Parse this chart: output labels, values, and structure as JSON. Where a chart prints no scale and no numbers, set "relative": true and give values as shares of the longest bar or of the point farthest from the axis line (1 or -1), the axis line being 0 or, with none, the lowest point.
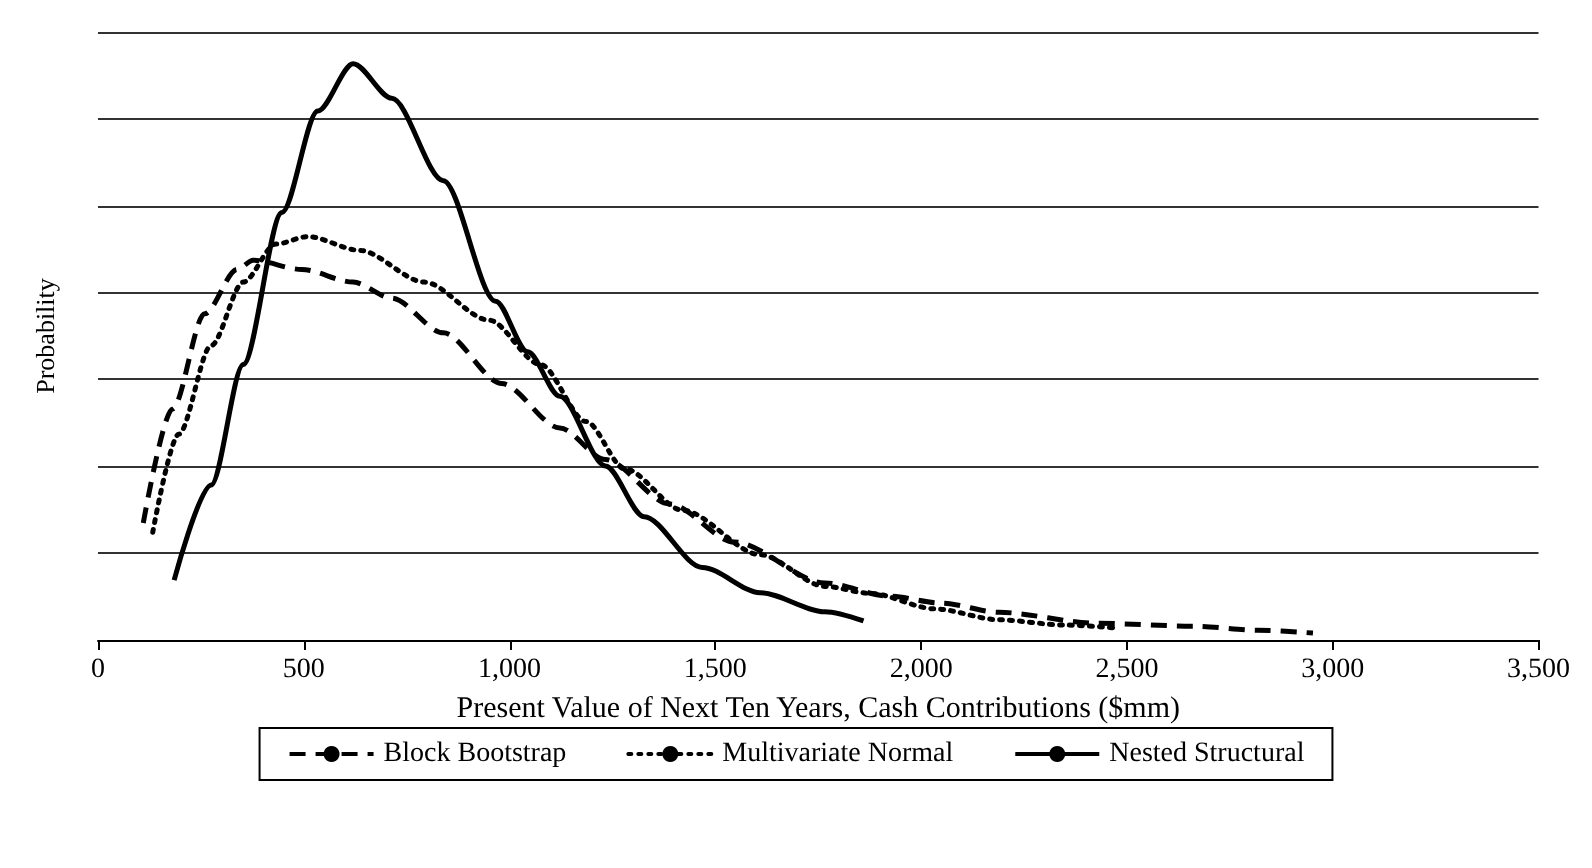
{
  "chart_data": {
    "type": "line",
    "relative": true,
    "xlabel": "Present Value of Next Ten Years, Cash Contributions ($mm)",
    "ylabel": "Probability",
    "xlim": [
      0,
      3500
    ],
    "xticks": [
      0,
      {
        "value": 500,
        "label": "500"
      },
      {
        "value": 1000,
        "label": "1,000"
      },
      {
        "value": 1500,
        "label": "1,500"
      },
      {
        "value": 2000,
        "label": "2,000"
      },
      {
        "value": 2500,
        "label": "2,500"
      },
      {
        "value": 3000,
        "label": "3,000"
      },
      {
        "value": 3500,
        "label": "3,500"
      }
    ],
    "grid": "y",
    "legend": "bottom",
    "marker": "none",
    "series": [
      {
        "name": "Block Bootstrap",
        "color": "#000000",
        "line_style": "dashed",
        "x": [
          110,
          181,
          259,
          338,
          377,
          495,
          620,
          714,
          839,
          981,
          1122,
          1233,
          1389,
          1546,
          1766,
          1923,
          2049,
          2190,
          2426,
          2661,
          2818,
          2952
        ],
        "values": [
          0.203,
          0.401,
          0.566,
          0.643,
          0.659,
          0.643,
          0.621,
          0.593,
          0.533,
          0.445,
          0.368,
          0.313,
          0.236,
          0.17,
          0.099,
          0.076,
          0.064,
          0.048,
          0.029,
          0.024,
          0.017,
          0.012
        ]
      },
      {
        "name": "Multivariate Normal",
        "color": "#000000",
        "line_style": "dotted",
        "x": [
          133,
          196,
          275,
          353,
          432,
          510,
          636,
          793,
          950,
          1075,
          1186,
          1280,
          1421,
          1609,
          1766,
          1876,
          2033,
          2190,
          2347,
          2473
        ],
        "values": [
          0.187,
          0.357,
          0.511,
          0.621,
          0.687,
          0.7,
          0.676,
          0.621,
          0.555,
          0.478,
          0.379,
          0.297,
          0.225,
          0.148,
          0.093,
          0.081,
          0.054,
          0.035,
          0.026,
          0.021
        ]
      },
      {
        "name": "Nested Structural",
        "color": "#000000",
        "line_style": "solid",
        "x": [
          185,
          275,
          353,
          447,
          534,
          620,
          714,
          839,
          966,
          1044,
          1122,
          1233,
          1327,
          1468,
          1609,
          1766,
          1860
        ],
        "values": [
          0.104,
          0.269,
          0.478,
          0.742,
          0.918,
          1.0,
          0.94,
          0.797,
          0.588,
          0.5,
          0.423,
          0.302,
          0.214,
          0.126,
          0.082,
          0.049,
          0.033
        ]
      }
    ]
  }
}
